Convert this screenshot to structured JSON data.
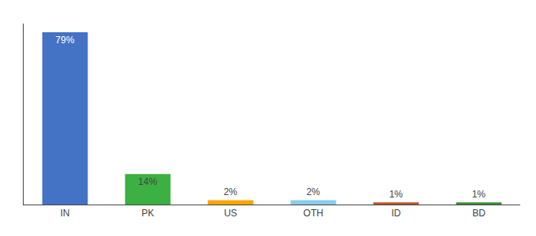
{
  "chart_data": {
    "type": "bar",
    "categories": [
      "IN",
      "PK",
      "US",
      "OTH",
      "ID",
      "BD"
    ],
    "values": [
      79,
      14,
      2,
      2,
      1,
      1
    ],
    "value_labels": [
      "79%",
      "14%",
      "2%",
      "2%",
      "1%",
      "1%"
    ],
    "colors": [
      "#4472C4",
      "#3CB043",
      "#FFA500",
      "#87CEEB",
      "#C0522A",
      "#3A8C3A"
    ],
    "ylim": [
      0,
      83
    ],
    "yticks": [],
    "grid": false,
    "data_labels": true,
    "tick_labels": "x"
  }
}
